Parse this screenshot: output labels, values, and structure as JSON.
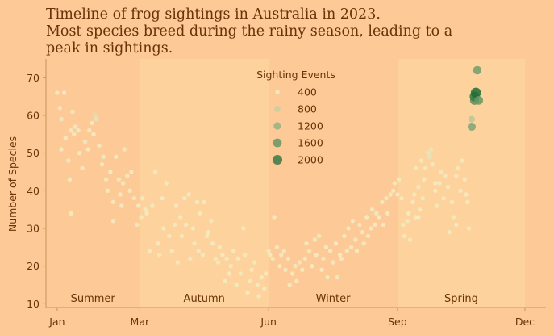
{
  "chart_data": {
    "type": "scatter",
    "title_lines": [
      "Timeline of frog sightings in Australia in 2023.",
      "Most species breed during the rainy season, leading to a",
      "peak in sightings."
    ],
    "xlabel": "",
    "ylabel": "Number of Species",
    "x_range": [
      "2023-01",
      "2023-12"
    ],
    "xlim_days": [
      -8,
      349
    ],
    "ylim": [
      9,
      75
    ],
    "x_ticks": [
      {
        "label": "Jan",
        "day": 0
      },
      {
        "label": "Mar",
        "day": 59
      },
      {
        "label": "Jun",
        "day": 151
      },
      {
        "label": "Sep",
        "day": 243
      },
      {
        "label": "Dec",
        "day": 334
      }
    ],
    "y_ticks": [
      10,
      20,
      30,
      40,
      50,
      60,
      70
    ],
    "seasons": [
      {
        "name": "Summer",
        "start_day": -8,
        "end_day": 59,
        "band_color": "#fdc997"
      },
      {
        "name": "Autumn",
        "start_day": 59,
        "end_day": 151,
        "band_color": "#fdd29d"
      },
      {
        "name": "Winter",
        "start_day": 151,
        "end_day": 243,
        "band_color": "#fdc997"
      },
      {
        "name": "Spring",
        "start_day": 243,
        "end_day": 334,
        "band_color": "#fdd29d"
      }
    ],
    "legend": {
      "title": "Sighting Events",
      "placement": "top-center",
      "entries": [
        {
          "label": "400",
          "value": 400
        },
        {
          "label": "800",
          "value": 800
        },
        {
          "label": "1200",
          "value": 1200
        },
        {
          "label": "1600",
          "value": 1600
        },
        {
          "label": "2000",
          "value": 2000
        }
      ]
    },
    "colors": {
      "background": "#fdc997",
      "text": "#6b3208",
      "axis": "#c8955f",
      "low": "#f4ecc2",
      "high": "#1f6b35"
    },
    "points": [
      [
        0,
        66,
        400
      ],
      [
        2,
        62,
        420
      ],
      [
        3,
        59,
        440
      ],
      [
        5,
        66,
        400
      ],
      [
        6,
        54,
        420
      ],
      [
        3,
        51,
        400
      ],
      [
        8,
        48,
        420
      ],
      [
        10,
        56,
        400
      ],
      [
        11,
        61,
        440
      ],
      [
        13,
        57,
        420
      ],
      [
        12,
        55,
        400
      ],
      [
        15,
        56,
        420
      ],
      [
        16,
        50,
        400
      ],
      [
        18,
        46,
        420
      ],
      [
        20,
        53,
        440
      ],
      [
        22,
        51,
        400
      ],
      [
        23,
        56,
        420
      ],
      [
        25,
        58,
        400
      ],
      [
        27,
        60,
        600
      ],
      [
        28,
        59,
        520
      ],
      [
        26,
        55,
        400
      ],
      [
        30,
        52,
        420
      ],
      [
        32,
        47,
        400
      ],
      [
        35,
        43,
        420
      ],
      [
        36,
        40,
        400
      ],
      [
        33,
        49,
        420
      ],
      [
        38,
        45,
        400
      ],
      [
        40,
        37,
        420
      ],
      [
        42,
        49,
        400
      ],
      [
        44,
        43,
        420
      ],
      [
        45,
        39,
        400
      ],
      [
        47,
        42,
        420
      ],
      [
        46,
        36,
        400
      ],
      [
        48,
        51,
        420
      ],
      [
        50,
        44,
        400
      ],
      [
        52,
        40,
        420
      ],
      [
        53,
        45,
        400
      ],
      [
        55,
        38,
        420
      ],
      [
        9,
        43,
        400
      ],
      [
        10,
        34,
        400
      ],
      [
        40,
        32,
        400
      ],
      [
        57,
        31,
        420
      ],
      [
        58,
        36,
        400
      ],
      [
        60,
        33,
        420
      ],
      [
        61,
        38,
        400
      ],
      [
        63,
        35,
        420
      ],
      [
        64,
        34,
        400
      ],
      [
        66,
        24,
        400
      ],
      [
        68,
        36,
        420
      ],
      [
        70,
        45,
        400
      ],
      [
        72,
        26,
        400
      ],
      [
        73,
        23,
        420
      ],
      [
        75,
        38,
        400
      ],
      [
        76,
        30,
        420
      ],
      [
        78,
        42,
        400
      ],
      [
        80,
        28,
        420
      ],
      [
        82,
        24,
        400
      ],
      [
        84,
        31,
        420
      ],
      [
        85,
        36,
        400
      ],
      [
        86,
        21,
        420
      ],
      [
        88,
        33,
        400
      ],
      [
        89,
        28,
        420
      ],
      [
        91,
        38,
        400
      ],
      [
        92,
        31,
        420
      ],
      [
        94,
        39,
        400
      ],
      [
        95,
        22,
        420
      ],
      [
        97,
        30,
        400
      ],
      [
        98,
        26,
        420
      ],
      [
        100,
        37,
        400
      ],
      [
        101,
        24,
        420
      ],
      [
        102,
        34,
        400
      ],
      [
        104,
        23,
        420
      ],
      [
        105,
        37,
        400
      ],
      [
        107,
        28,
        420
      ],
      [
        108,
        29,
        400
      ],
      [
        110,
        32,
        420
      ],
      [
        111,
        26,
        400
      ],
      [
        113,
        22,
        420
      ],
      [
        115,
        21,
        400
      ],
      [
        116,
        25,
        420
      ],
      [
        118,
        23,
        400
      ],
      [
        120,
        16,
        400
      ],
      [
        121,
        22,
        420
      ],
      [
        123,
        18,
        400
      ],
      [
        124,
        20,
        420
      ],
      [
        126,
        24,
        400
      ],
      [
        128,
        15,
        420
      ],
      [
        129,
        22,
        400
      ],
      [
        131,
        18,
        420
      ],
      [
        133,
        30,
        400
      ],
      [
        134,
        23,
        420
      ],
      [
        136,
        13,
        400
      ],
      [
        138,
        16,
        420
      ],
      [
        139,
        19,
        400
      ],
      [
        141,
        21,
        420
      ],
      [
        143,
        15,
        400
      ],
      [
        144,
        12,
        420
      ],
      [
        146,
        17,
        400
      ],
      [
        148,
        14,
        420
      ],
      [
        149,
        18,
        400
      ],
      [
        151,
        24,
        420
      ],
      [
        152,
        23,
        400
      ],
      [
        154,
        22,
        420
      ],
      [
        155,
        33,
        400
      ],
      [
        157,
        25,
        420
      ],
      [
        159,
        20,
        400
      ],
      [
        160,
        23,
        420
      ],
      [
        162,
        24,
        400
      ],
      [
        163,
        19,
        420
      ],
      [
        165,
        22,
        400
      ],
      [
        166,
        15,
        420
      ],
      [
        168,
        18,
        400
      ],
      [
        170,
        20,
        420
      ],
      [
        171,
        16,
        400
      ],
      [
        173,
        21,
        420
      ],
      [
        175,
        19,
        400
      ],
      [
        177,
        22,
        420
      ],
      [
        178,
        26,
        400
      ],
      [
        180,
        24,
        420
      ],
      [
        182,
        20,
        400
      ],
      [
        184,
        27,
        420
      ],
      [
        185,
        23,
        400
      ],
      [
        187,
        28,
        420
      ],
      [
        189,
        19,
        400
      ],
      [
        190,
        22,
        420
      ],
      [
        192,
        25,
        400
      ],
      [
        193,
        17,
        420
      ],
      [
        195,
        24,
        400
      ],
      [
        197,
        21,
        420
      ],
      [
        199,
        26,
        400
      ],
      [
        200,
        17,
        420
      ],
      [
        202,
        23,
        400
      ],
      [
        203,
        22,
        420
      ],
      [
        205,
        28,
        400
      ],
      [
        207,
        24,
        420
      ],
      [
        208,
        30,
        400
      ],
      [
        210,
        25,
        420
      ],
      [
        211,
        32,
        400
      ],
      [
        213,
        27,
        420
      ],
      [
        214,
        24,
        400
      ],
      [
        216,
        31,
        420
      ],
      [
        218,
        29,
        400
      ],
      [
        219,
        26,
        420
      ],
      [
        221,
        33,
        400
      ],
      [
        222,
        28,
        420
      ],
      [
        224,
        30,
        400
      ],
      [
        225,
        35,
        420
      ],
      [
        227,
        31,
        400
      ],
      [
        228,
        34,
        420
      ],
      [
        230,
        33,
        400
      ],
      [
        232,
        37,
        420
      ],
      [
        233,
        31,
        400
      ],
      [
        235,
        38,
        420
      ],
      [
        236,
        34,
        400
      ],
      [
        238,
        39,
        420
      ],
      [
        240,
        40,
        400
      ],
      [
        241,
        42,
        420
      ],
      [
        243,
        39,
        400
      ],
      [
        244,
        43,
        420
      ],
      [
        246,
        38,
        400
      ],
      [
        247,
        31,
        420
      ],
      [
        248,
        28,
        400
      ],
      [
        250,
        32,
        420
      ],
      [
        251,
        34,
        400
      ],
      [
        252,
        27,
        420
      ],
      [
        254,
        37,
        400
      ],
      [
        255,
        39,
        420
      ],
      [
        256,
        33,
        400
      ],
      [
        258,
        41,
        420
      ],
      [
        259,
        35,
        400
      ],
      [
        260,
        48,
        420
      ],
      [
        262,
        43,
        400
      ],
      [
        263,
        46,
        420
      ],
      [
        265,
        50,
        500
      ],
      [
        266,
        49,
        520
      ],
      [
        267,
        51,
        500
      ],
      [
        268,
        47,
        420
      ],
      [
        270,
        40,
        400
      ],
      [
        271,
        36,
        420
      ],
      [
        273,
        42,
        400
      ],
      [
        274,
        45,
        420
      ],
      [
        276,
        38,
        400
      ],
      [
        277,
        44,
        420
      ],
      [
        279,
        41,
        400
      ],
      [
        280,
        29,
        420
      ],
      [
        282,
        37,
        400
      ],
      [
        283,
        33,
        420
      ],
      [
        285,
        44,
        400
      ],
      [
        286,
        46,
        420
      ],
      [
        288,
        40,
        400
      ],
      [
        289,
        48,
        420
      ],
      [
        291,
        43,
        400
      ],
      [
        292,
        39,
        420
      ],
      [
        293,
        37,
        400
      ],
      [
        294,
        30,
        420
      ],
      [
        285,
        31,
        400
      ],
      [
        261,
        38,
        420
      ],
      [
        258,
        33,
        400
      ],
      [
        256,
        46,
        420
      ],
      [
        270,
        42,
        400
      ],
      [
        296,
        59,
        900
      ],
      [
        296,
        57,
        1400
      ],
      [
        298,
        64,
        1700
      ],
      [
        298,
        65,
        2000
      ],
      [
        299,
        66,
        2200
      ],
      [
        300,
        72,
        1500
      ],
      [
        301,
        64,
        1600
      ]
    ]
  }
}
